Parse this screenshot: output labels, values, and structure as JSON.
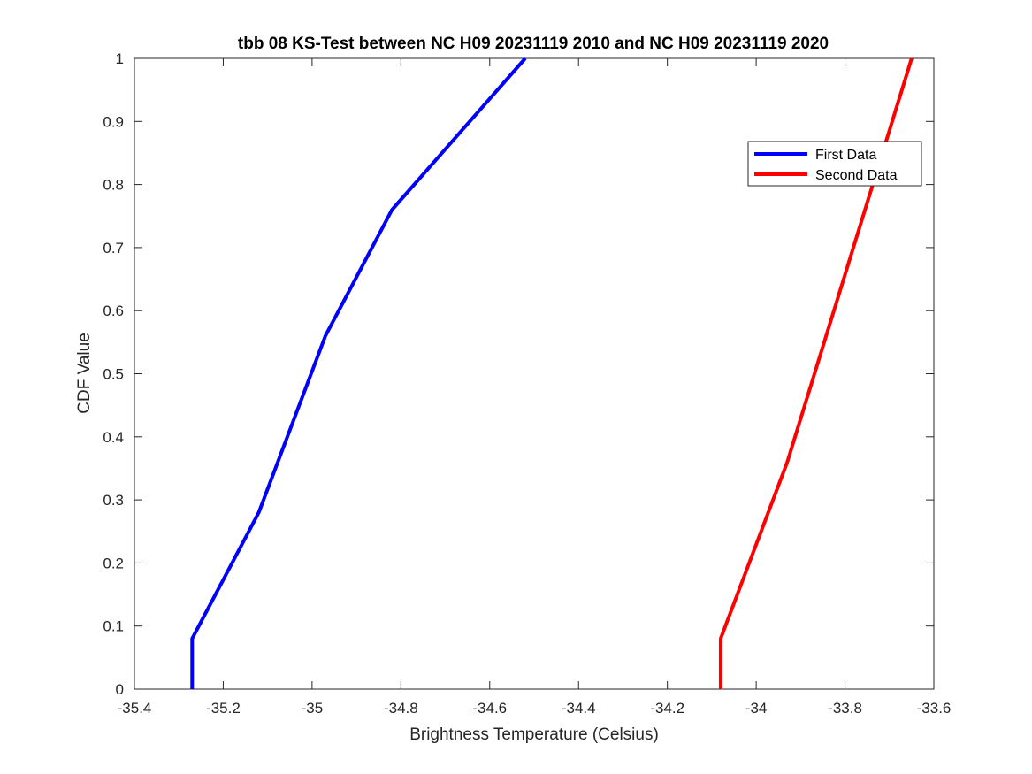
{
  "chart_data": {
    "type": "line",
    "title": "tbb 08 KS-Test between NC H09 20231119 2010 and NC H09 20231119 2020",
    "xlabel": "Brightness Temperature (Celsius)",
    "ylabel": "CDF Value",
    "xlim": [
      -35.4,
      -33.6
    ],
    "ylim": [
      0,
      1
    ],
    "x_ticks": [
      "-35.4",
      "-35.2",
      "-35",
      "-34.8",
      "-34.6",
      "-34.4",
      "-34.2",
      "-34",
      "-33.8",
      "-33.6"
    ],
    "y_ticks": [
      "0",
      "0.1",
      "0.2",
      "0.3",
      "0.4",
      "0.5",
      "0.6",
      "0.7",
      "0.8",
      "0.9",
      "1"
    ],
    "grid": false,
    "legend_position": "top-right",
    "series": [
      {
        "name": "First Data",
        "color": "#0000ff",
        "points": [
          [
            -35.27,
            0.0
          ],
          [
            -35.27,
            0.08
          ],
          [
            -35.12,
            0.28
          ],
          [
            -34.97,
            0.56
          ],
          [
            -34.82,
            0.76
          ],
          [
            -34.52,
            1.0
          ]
        ]
      },
      {
        "name": "Second Data",
        "color": "#ff0000",
        "points": [
          [
            -34.08,
            0.0
          ],
          [
            -34.08,
            0.08
          ],
          [
            -33.93,
            0.36
          ],
          [
            -33.65,
            1.0
          ]
        ]
      }
    ]
  }
}
